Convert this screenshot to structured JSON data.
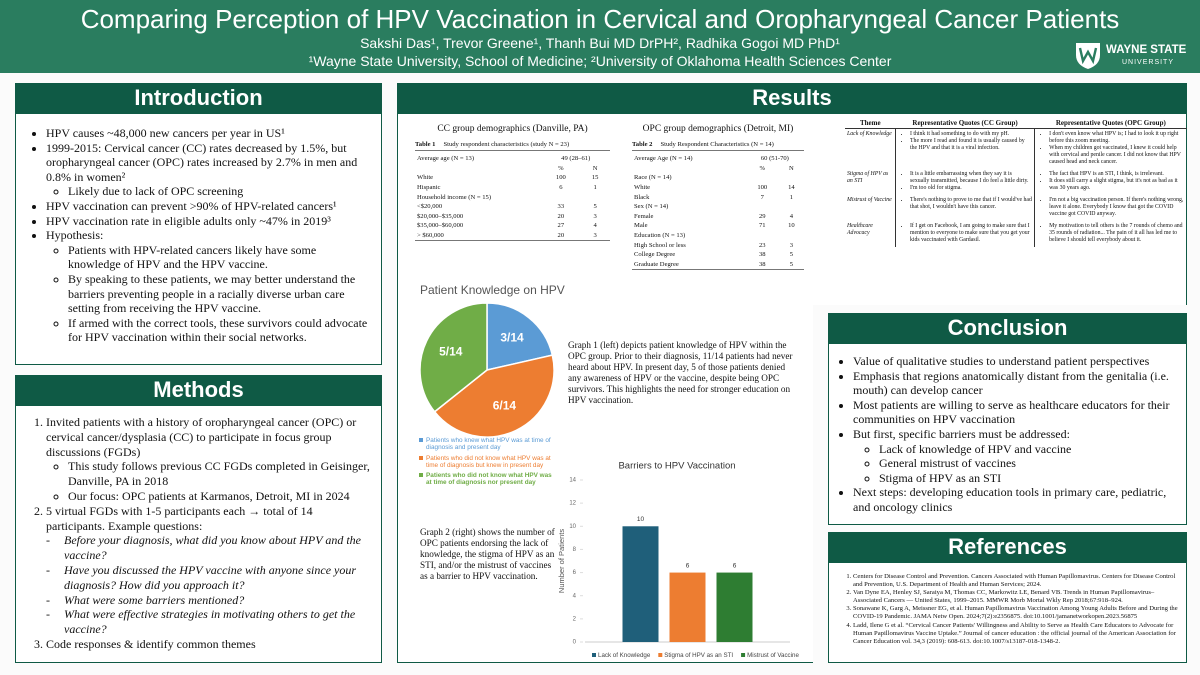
{
  "header": {
    "title": "Comparing Perception of HPV Vaccination in Cervical and Oropharyngeal Cancer Patients",
    "authors": "Sakshi Das¹, Trevor Greene¹, Thanh Bui MD DrPH², Radhika Gogoi MD PhD¹",
    "affiliations": "¹Wayne State University, School of Medicine; ²University of Oklahoma Health Sciences Center",
    "logo": {
      "name": "WAYNE STATE",
      "subname": "UNIVERSITY"
    }
  },
  "introduction": {
    "heading": "Introduction",
    "items": [
      "HPV causes ~48,000 new cancers per year in US¹",
      {
        "text": "1999-2015: Cervical cancer (CC) rates decreased by 1.5%, but oropharyngeal cancer (OPC) rates increased by 2.7% in men and 0.8% in women²",
        "subitems": [
          "Likely due to lack of OPC screening"
        ]
      },
      "HPV vaccination can prevent >90% of HPV-related cancers¹",
      "HPV vaccination rate in eligible adults only ~47% in 2019³",
      {
        "text": "Hypothesis:",
        "subitems": [
          "Patients with HPV-related cancers likely have some knowledge of HPV and the HPV vaccine.",
          "By speaking to these patients, we may better understand the barriers preventing people in a racially diverse urban care setting from receiving the HPV vaccine.",
          "If armed with the correct tools, these survivors could advocate for HPV vaccination within their social networks."
        ]
      }
    ]
  },
  "methods": {
    "heading": "Methods",
    "items": [
      {
        "text": "Invited patients with a history of oropharyngeal cancer (OPC) or cervical cancer/dysplasia (CC) to participate in focus group discussions (FGDs)",
        "subitems": [
          "This study follows previous CC FGDs completed in Geisinger, Danville, PA in 2018",
          "Our focus: OPC patients at Karmanos, Detroit, MI in 2024"
        ]
      },
      {
        "text": "5 virtual FGDs with 1-5 participants each → total of 14 participants. Example questions:",
        "subitems": [
          "Before your diagnosis, what did you know about HPV and the vaccine?",
          "Have you discussed the HPV vaccine with anyone since your diagnosis? How did you approach it?",
          "What were some barriers mentioned?",
          "What were effective strategies in motivating others to get the vaccine?"
        ]
      },
      "Code responses & identify common themes"
    ]
  },
  "results": {
    "heading": "Results",
    "tables": [
      {
        "title": "CC group demographics (Danville, PA)",
        "caption": {
          "label": "Table 1",
          "text": "Study respondent characteristics (study N = 23)"
        },
        "rows": [
          {
            "label": "Average age (N = 13)",
            "cells": [
              "49 (28–61)"
            ]
          },
          {
            "cells": [
              "%",
              "N"
            ]
          },
          {
            "label": "White",
            "cells": [
              "100",
              "15"
            ]
          },
          {
            "label": "Hispanic",
            "cells": [
              "6",
              "1"
            ]
          },
          {
            "label": "Household income (N = 15)"
          },
          {
            "label": "<$20,000",
            "cells": [
              "33",
              "5"
            ]
          },
          {
            "label": "$20,000–$35,000",
            "cells": [
              "20",
              "3"
            ]
          },
          {
            "label": "$35,000–$60,000",
            "cells": [
              "27",
              "4"
            ]
          },
          {
            "label": "> $60,000",
            "cells": [
              "20",
              "3"
            ]
          }
        ]
      },
      {
        "title": "OPC group demographics (Detroit, MI)",
        "caption": {
          "label": "Table 2",
          "text": "Study Respondent Characteristics (N = 14)"
        },
        "rows": [
          {
            "label": "Average Age (N = 14)",
            "cells": [
              "60 (51-70)"
            ]
          },
          {
            "cells": [
              "%",
              "N"
            ]
          },
          {
            "label": "Race (N = 14)"
          },
          {
            "label": "White",
            "cells": [
              "100",
              "14"
            ]
          },
          {
            "label": "Black",
            "cells": [
              "7",
              "1"
            ]
          },
          {
            "label": "Sex (N = 14)"
          },
          {
            "label": "Female",
            "cells": [
              "29",
              "4"
            ]
          },
          {
            "label": "Male",
            "cells": [
              "71",
              "10"
            ]
          },
          {
            "label": "Education (N = 13)"
          },
          {
            "label": "High School or less",
            "cells": [
              "23",
              "3"
            ]
          },
          {
            "label": "College Degree",
            "cells": [
              "38",
              "5"
            ]
          },
          {
            "label": "Graduate Degree",
            "cells": [
              "38",
              "5"
            ]
          }
        ]
      }
    ],
    "quotes": {
      "headers": [
        "Theme",
        "Representative Quotes (CC Group)",
        "Representative Quotes (OPC Group)"
      ],
      "rows": [
        {
          "theme": "Lack of Knowledge",
          "cc": [
            "I think it had something to do with my pH.",
            "The more I read and found it is usually caused by the HPV and that it is a viral infection."
          ],
          "opc": [
            "I don't even know what HPV is; I had to look it up right before this zoom meeting.",
            "When my children got vaccinated, I knew it could help with cervical and penile cancer. I did not know that HPV caused head and neck cancer."
          ]
        },
        {
          "theme": "Stigma of HPV as an STI",
          "cc": [
            "It is a little embarrassing when they say it is sexually transmitted, because I do feel a little dirty.",
            "I'm too old for stigma."
          ],
          "opc": [
            "The fact that HPV is an STI, I think, is irrelevant.",
            "It does still carry a slight stigma, but it's not as bad as it was 30 years ago."
          ]
        },
        {
          "theme": "Mistrust of Vaccine",
          "cc": [
            "There's nothing to prove to me that if I would've had that shot, I wouldn't have this cancer."
          ],
          "opc": [
            "I'm not a big vaccination person. If there's nothing wrong, leave it alone. Everybody I know that got the COVID vaccine got COVID anyway."
          ]
        },
        {
          "theme": "Healthcare Advocacy",
          "cc": [
            "If I get on Facebook, I am going to make sure that I mention to everyone to make sure that you get your kids vaccinated with Gardasil."
          ],
          "opc": [
            "My motivation to tell others is the 7 rounds of chemo and 35 rounds of radiation... The pain of it all has led me to believe I should tell everybody about it."
          ]
        }
      ]
    },
    "graph1_text": "Graph 1 (left) depicts patient knowledge of HPV within the OPC group. Prior to their diagnosis, 11/14 patients had never heard about HPV. In present day, 5 of those patients denied any awareness of HPV or the vaccine, despite being OPC survivors. This highlights the need for stronger education on HPV vaccination.",
    "graph2_text": "Graph 2 (right) shows the number of OPC patients endorsing the lack of knowledge, the stigma of HPV as an STI, and/or the mistrust of vaccines as a barrier to HPV vaccination."
  },
  "chart_data": [
    {
      "type": "pie",
      "title": "Patient Knowledge on HPV",
      "categories": [
        "Patients who knew what HPV was at time of diagnosis and present day",
        "Patients who did not know what HPV was at time of diagnosis but knew in present day",
        "Patients who did not know what HPV was at time of diagnosis nor present day"
      ],
      "values": [
        3,
        6,
        5
      ],
      "value_labels": [
        "3/14",
        "6/14",
        "5/14"
      ],
      "colors": [
        "#5b9bd5",
        "#ed7d31",
        "#70ad47"
      ]
    },
    {
      "type": "bar",
      "title": "Barriers to HPV Vaccination",
      "ylabel": "Number of Patients",
      "categories": [
        "Lack of Knowledge",
        "Stigma of HPV as an STI",
        "Mistrust of Vaccine"
      ],
      "values": [
        10,
        6,
        6
      ],
      "colors": [
        "#1f5f7a",
        "#ed7d31",
        "#2e7d32"
      ],
      "ylim": [
        0,
        14
      ],
      "yticks": [
        0,
        2,
        4,
        6,
        8,
        10,
        12,
        14
      ]
    }
  ],
  "conclusion": {
    "heading": "Conclusion",
    "items": [
      "Value of qualitative studies to understand patient perspectives",
      "Emphasis that regions anatomically distant from the genitalia (i.e. mouth) can develop cancer",
      "Most patients are willing to serve as healthcare educators for their communities on HPV vaccination",
      {
        "text": "But first, specific barriers must be addressed:",
        "subitems": [
          "Lack of knowledge of HPV and vaccine",
          "General mistrust of vaccines",
          "Stigma of HPV as an STI"
        ]
      },
      "Next steps: developing education tools in primary care, pediatric, and oncology clinics"
    ]
  },
  "references": {
    "heading": "References",
    "items": [
      "Centers for Disease Control and Prevention. Cancers Associated with Human Papillomavirus. Centers for Disease Control and Prevention, U.S. Department of Health and Human Services; 2024.",
      "Van Dyne EA, Henley SJ, Saraiya M, Thomas CC, Markowitz LE, Benard VB. Trends in Human Papillomavirus–Associated Cancers — United States, 1999–2015. MMWR Morb Mortal Wkly Rep 2018;67:918–924.",
      "Sonawane K, Garg A, Meissner EG, et al. Human Papillomavirus Vaccination Among Young Adults Before and During the COVID-19 Pandemic. JAMA Netw Open. 2024;7(2):e2356875. doi:10.1001/jamanetworkopen.2023.56875",
      "Ladd, Ilene G et al. “Cervical Cancer Patients' Willingness and Ability to Serve as Health Care Educators to Advocate for Human Papillomavirus Vaccine Uptake.” Journal of cancer education : the official journal of the American Association for Cancer Education vol. 34,3 (2019): 608-613. doi:10.1007/s13187-018-1348-2."
    ]
  }
}
